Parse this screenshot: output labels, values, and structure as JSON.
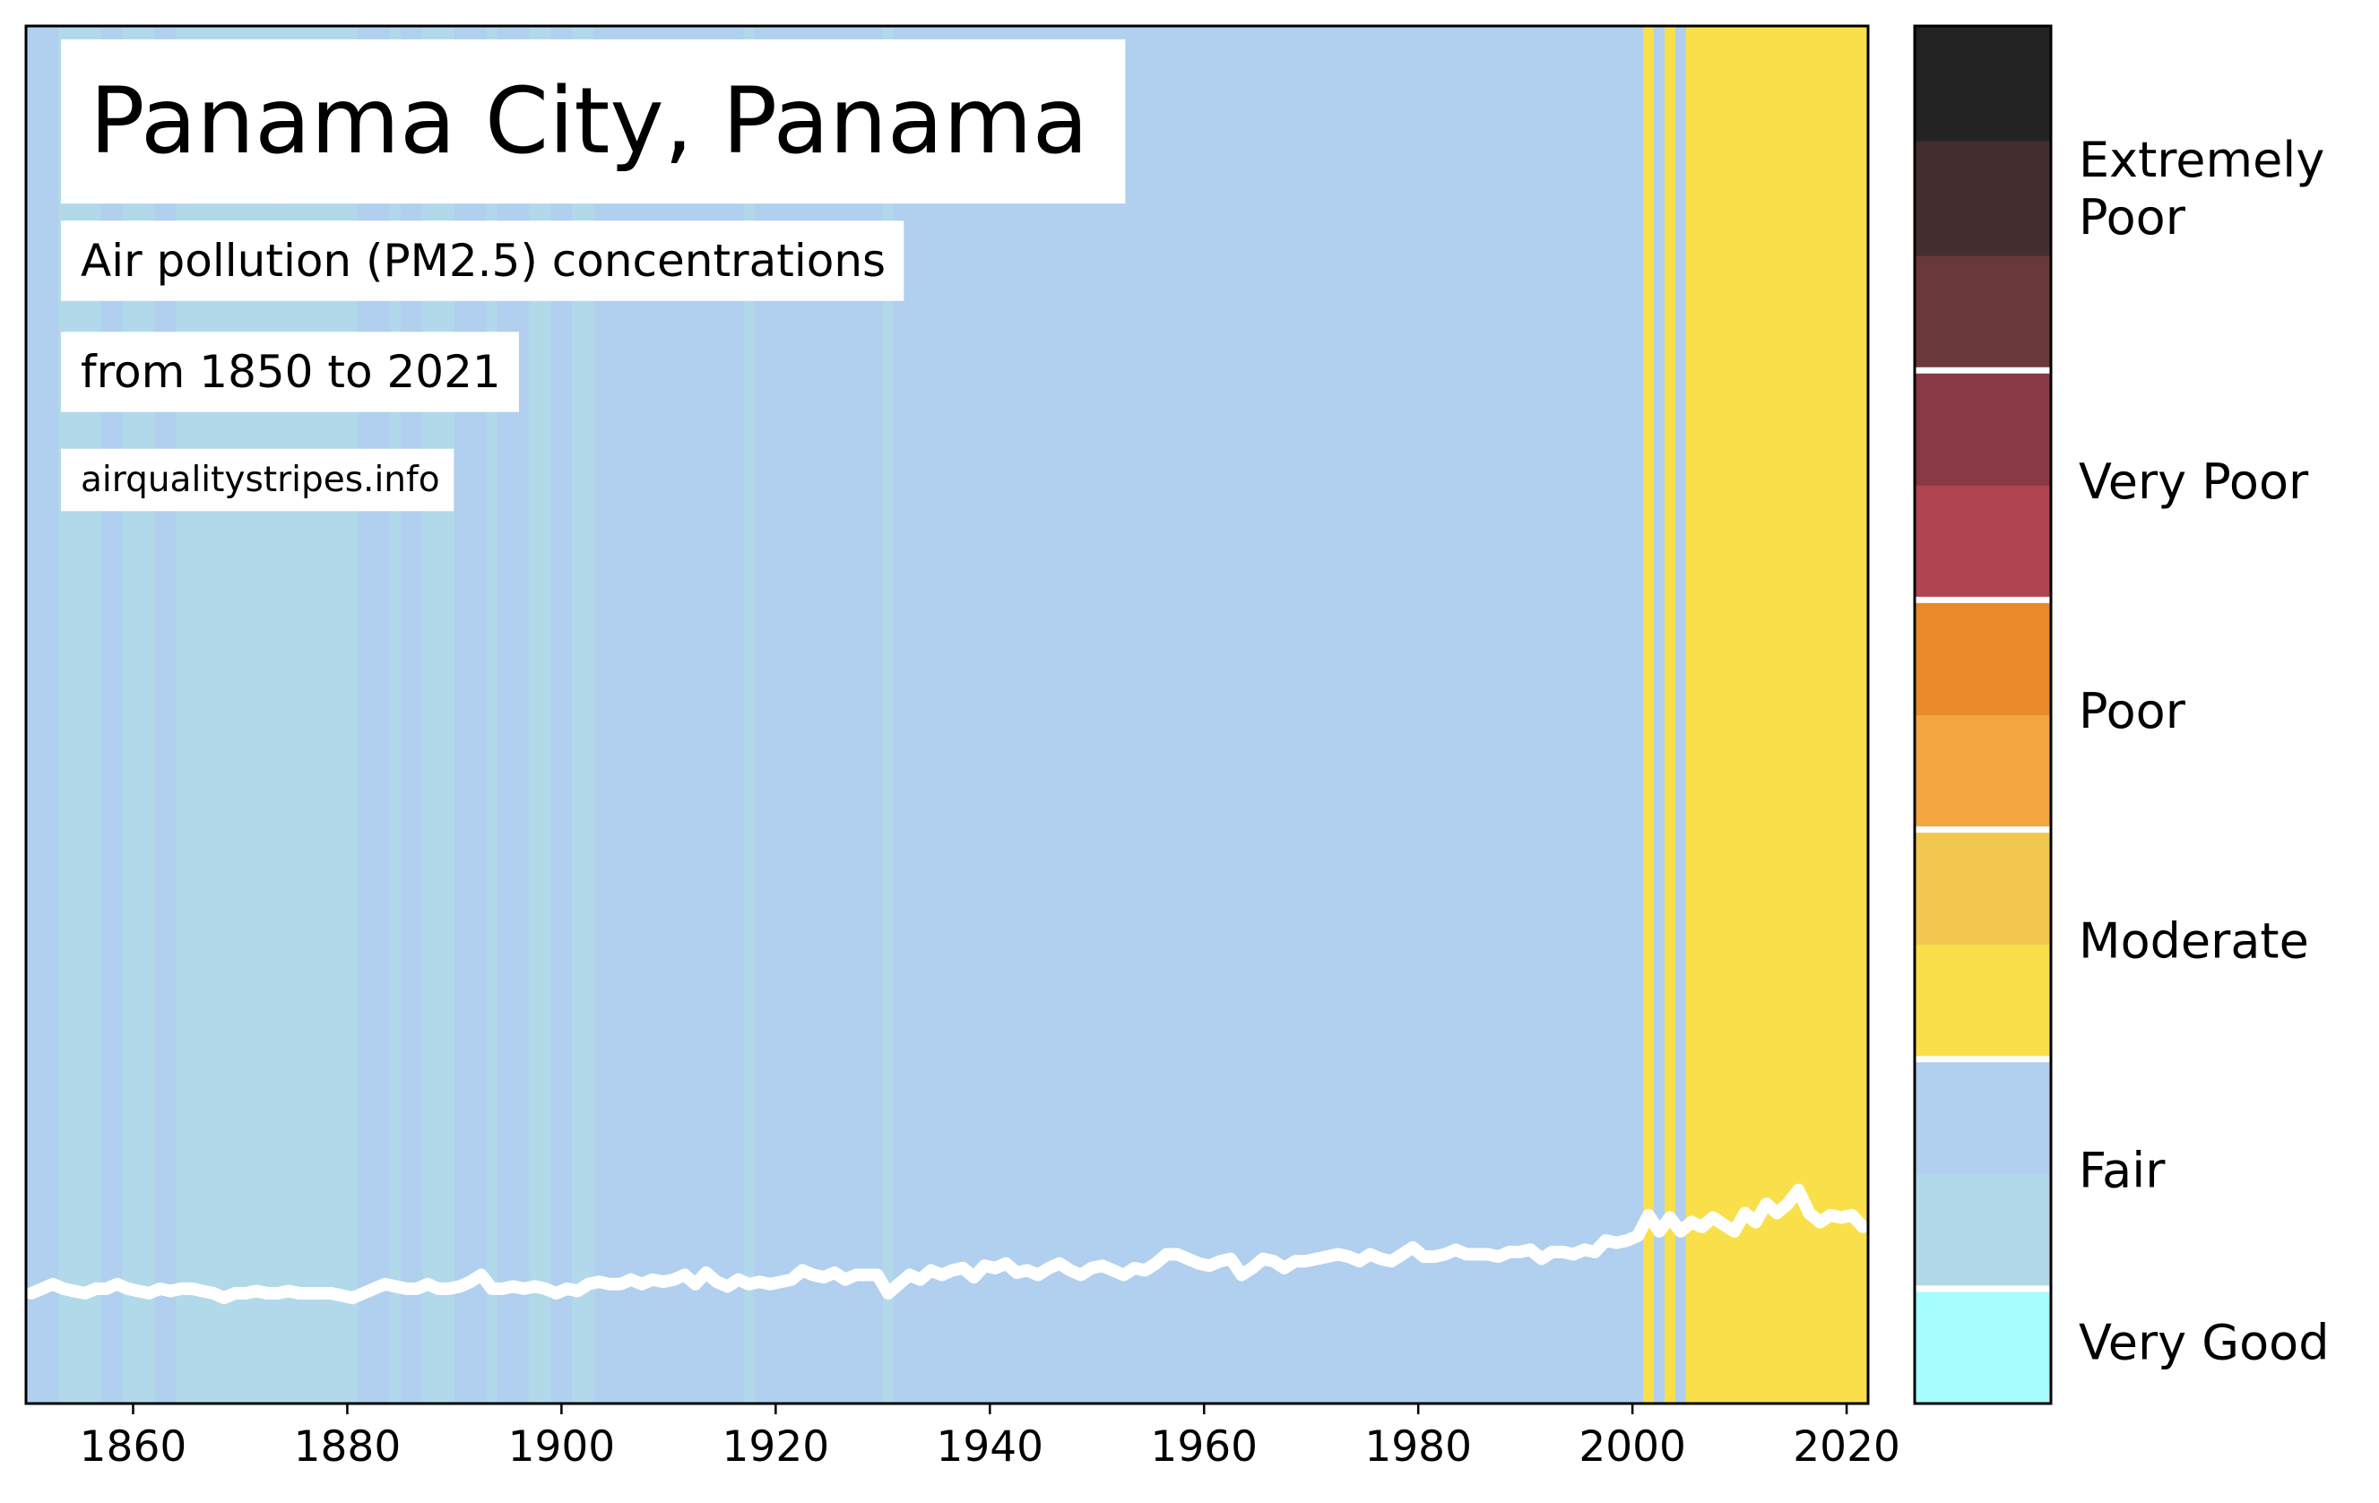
{
  "chart_data": {
    "type": "stripes",
    "title": "Panama City, Panama",
    "subtitle": "Air pollution (PM2.5) concentrations",
    "period": "from 1850 to 2021",
    "source": "airqualitystripes.info",
    "x": [
      1850,
      1851,
      1852,
      1853,
      1854,
      1855,
      1856,
      1857,
      1858,
      1859,
      1860,
      1861,
      1862,
      1863,
      1864,
      1865,
      1866,
      1867,
      1868,
      1869,
      1870,
      1871,
      1872,
      1873,
      1874,
      1875,
      1876,
      1877,
      1878,
      1879,
      1880,
      1881,
      1882,
      1883,
      1884,
      1885,
      1886,
      1887,
      1888,
      1889,
      1890,
      1891,
      1892,
      1893,
      1894,
      1895,
      1896,
      1897,
      1898,
      1899,
      1900,
      1901,
      1902,
      1903,
      1904,
      1905,
      1906,
      1907,
      1908,
      1909,
      1910,
      1911,
      1912,
      1913,
      1914,
      1915,
      1916,
      1917,
      1918,
      1919,
      1920,
      1921,
      1922,
      1923,
      1924,
      1925,
      1926,
      1927,
      1928,
      1929,
      1930,
      1931,
      1932,
      1933,
      1934,
      1935,
      1936,
      1937,
      1938,
      1939,
      1940,
      1941,
      1942,
      1943,
      1944,
      1945,
      1946,
      1947,
      1948,
      1949,
      1950,
      1951,
      1952,
      1953,
      1954,
      1955,
      1956,
      1957,
      1958,
      1959,
      1960,
      1961,
      1962,
      1963,
      1964,
      1965,
      1966,
      1967,
      1968,
      1969,
      1970,
      1971,
      1972,
      1973,
      1974,
      1975,
      1976,
      1977,
      1978,
      1979,
      1980,
      1981,
      1982,
      1983,
      1984,
      1985,
      1986,
      1987,
      1988,
      1989,
      1990,
      1991,
      1992,
      1993,
      1994,
      1995,
      1996,
      1997,
      1998,
      1999,
      2000,
      2001,
      2002,
      2003,
      2004,
      2005,
      2006,
      2007,
      2008,
      2009,
      2010,
      2011,
      2012,
      2013,
      2014,
      2015,
      2016,
      2017,
      2018,
      2019,
      2020,
      2021
    ],
    "values": [
      4.8,
      5.0,
      5.2,
      5.0,
      4.9,
      4.8,
      5.0,
      5.0,
      5.2,
      5.0,
      4.9,
      4.8,
      5.0,
      4.9,
      5.0,
      5.0,
      4.9,
      4.8,
      4.6,
      4.8,
      4.8,
      4.9,
      4.8,
      4.8,
      4.9,
      4.8,
      4.8,
      4.8,
      4.8,
      4.7,
      4.6,
      4.8,
      5.0,
      5.2,
      5.1,
      5.0,
      5.0,
      5.2,
      5.0,
      5.0,
      5.1,
      5.3,
      5.6,
      5.0,
      5.0,
      5.1,
      5.0,
      5.1,
      5.0,
      4.8,
      5.0,
      4.9,
      5.2,
      5.3,
      5.2,
      5.2,
      5.4,
      5.2,
      5.4,
      5.3,
      5.4,
      5.6,
      5.2,
      5.7,
      5.3,
      5.1,
      5.4,
      5.2,
      5.3,
      5.2,
      5.3,
      5.4,
      5.8,
      5.6,
      5.5,
      5.7,
      5.4,
      5.6,
      5.6,
      5.6,
      4.8,
      5.2,
      5.6,
      5.4,
      5.8,
      5.6,
      5.8,
      5.9,
      5.5,
      6.0,
      5.9,
      6.1,
      5.7,
      5.8,
      5.6,
      5.9,
      6.1,
      5.8,
      5.6,
      5.9,
      6.0,
      5.8,
      5.6,
      5.9,
      5.8,
      6.1,
      6.5,
      6.5,
      6.3,
      6.1,
      6.0,
      6.2,
      6.3,
      5.6,
      5.9,
      6.3,
      6.2,
      5.9,
      6.2,
      6.2,
      6.3,
      6.4,
      6.5,
      6.4,
      6.2,
      6.5,
      6.3,
      6.2,
      6.5,
      6.8,
      6.4,
      6.4,
      6.5,
      6.7,
      6.5,
      6.5,
      6.5,
      6.4,
      6.6,
      6.6,
      6.7,
      6.3,
      6.6,
      6.6,
      6.5,
      6.7,
      6.6,
      7.1,
      7.0,
      7.1,
      7.3,
      8.2,
      7.5,
      8.1,
      7.5,
      7.9,
      7.7,
      8.1,
      7.8,
      7.5,
      8.3,
      7.9,
      8.7,
      8.3,
      8.7,
      9.3,
      8.3,
      7.9,
      8.2,
      8.1,
      8.2,
      7.7
    ],
    "colors": [
      "#b1cfee",
      "#b1cfee",
      "#b1cfee",
      "#b2d9ea",
      "#b2d9ea",
      "#b2d9ea",
      "#b2d9ea",
      "#b1cfee",
      "#b1cfee",
      "#b2d9ea",
      "#b2d9ea",
      "#b2d9ea",
      "#b1cfee",
      "#b1cfee",
      "#b2d9ea",
      "#b2d9ea",
      "#b2d9ea",
      "#b2d9ea",
      "#b2d9ea",
      "#b2d9ea",
      "#b2d9ea",
      "#b2d9ea",
      "#b2d9ea",
      "#b2d9ea",
      "#b2d9ea",
      "#b2d9ea",
      "#b2d9ea",
      "#b2d9ea",
      "#b2d9ea",
      "#b2d9ea",
      "#b2d9ea",
      "#b1cfee",
      "#b1cfee",
      "#b1cfee",
      "#b2d9ea",
      "#b1cfee",
      "#b1cfee",
      "#b2d9ea",
      "#b2d9ea",
      "#b2d9ea",
      "#b1cfee",
      "#b1cfee",
      "#b1cfee",
      "#b2d9ea",
      "#b1cfee",
      "#b1cfee",
      "#b1cfee",
      "#b2d9ea",
      "#b2d9ea",
      "#b1cfee",
      "#b1cfee",
      "#b2d9ea",
      "#b2d9ea",
      "#b1cfee",
      "#b1cfee",
      "#b1cfee",
      "#b1cfee",
      "#b1cfee",
      "#b1cfee",
      "#b1cfee",
      "#b1cfee",
      "#b1cfee",
      "#b1cfee",
      "#b1cfee",
      "#b1cfee",
      "#b1cfee",
      "#b1cfee",
      "#b2d9ea",
      "#b1cfee",
      "#b1cfee",
      "#b1cfee",
      "#b1cfee",
      "#b1cfee",
      "#b1cfee",
      "#b1cfee",
      "#b1cfee",
      "#b1cfee",
      "#b1cfee",
      "#b1cfee",
      "#b1cfee",
      "#b2d9ea",
      "#b1cfee",
      "#b1cfee",
      "#b1cfee",
      "#b1cfee",
      "#b1cfee",
      "#b1cfee",
      "#b1cfee",
      "#b1cfee",
      "#b1cfee",
      "#b1cfee",
      "#b1cfee",
      "#b1cfee",
      "#b1cfee",
      "#b1cfee",
      "#b1cfee",
      "#b1cfee",
      "#b1cfee",
      "#b1cfee",
      "#b1cfee",
      "#b1cfee",
      "#b1cfee",
      "#b1cfee",
      "#b1cfee",
      "#b1cfee",
      "#b1cfee",
      "#b1cfee",
      "#b1cfee",
      "#b1cfee",
      "#b1cfee",
      "#b1cfee",
      "#b1cfee",
      "#b1cfee",
      "#b1cfee",
      "#b1cfee",
      "#b1cfee",
      "#b1cfee",
      "#b1cfee",
      "#b1cfee",
      "#b1cfee",
      "#b1cfee",
      "#b1cfee",
      "#b1cfee",
      "#b1cfee",
      "#b1cfee",
      "#b1cfee",
      "#b1cfee",
      "#b1cfee",
      "#b1cfee",
      "#b1cfee",
      "#b1cfee",
      "#b1cfee",
      "#b1cfee",
      "#b1cfee",
      "#b1cfee",
      "#b1cfee",
      "#b1cfee",
      "#b1cfee",
      "#b1cfee",
      "#b1cfee",
      "#b1cfee",
      "#b1cfee",
      "#b1cfee",
      "#b1cfee",
      "#b1cfee",
      "#b1cfee",
      "#b1cfee",
      "#b1cfee",
      "#b1cfee",
      "#b1cfee",
      "#b1cfee",
      "#f9e04a",
      "#b1cfee",
      "#f9e04a",
      "#b1cfee",
      "#f9e04a",
      "#f9e04a",
      "#f9e04a",
      "#f9e04a",
      "#f9e04a",
      "#f9e04a",
      "#f9e04a",
      "#f9e04a",
      "#f9e04a",
      "#f9e04a",
      "#f9e04a",
      "#f9e04a",
      "#f9e04a",
      "#f9e04a",
      "#f9e04a",
      "#f9e04a",
      "#f9e04a"
    ],
    "line_color": "#ffffff",
    "xlim": [
      1850,
      2022
    ],
    "ylim": [
      0,
      60
    ],
    "xticks": [
      1860,
      1880,
      1900,
      1920,
      1940,
      1960,
      1980,
      2000,
      2020
    ],
    "colorbar": {
      "colors": [
        "#a6fdfe",
        "#b2d9ea",
        "#b1cfee",
        "#f9e04a",
        "#f2c74e",
        "#f1a63f",
        "#e88a27",
        "#b04450",
        "#893943",
        "#693939",
        "#452e2f",
        "#232323"
      ],
      "labels": [
        "Very Good",
        "Fair",
        "Moderate",
        "Poor",
        "Very Poor",
        "Extremely Poor"
      ],
      "segments": [
        1,
        2,
        2,
        2,
        2,
        3
      ]
    }
  }
}
